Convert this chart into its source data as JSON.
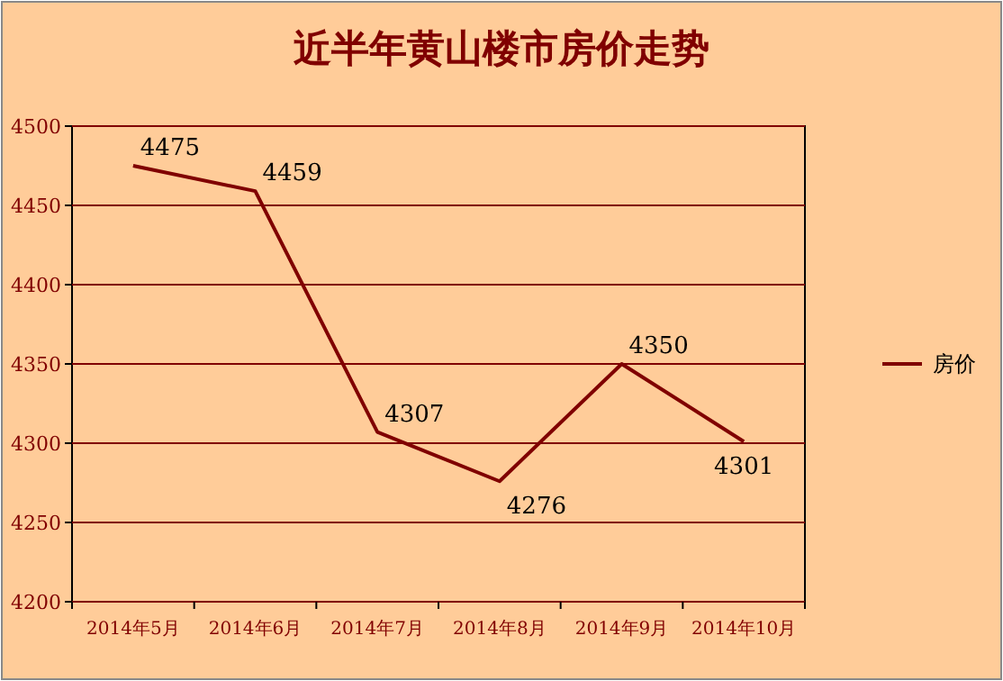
{
  "chart_data": {
    "type": "line",
    "title": "近半年黄山楼市房价走势",
    "categories": [
      "2014年5月",
      "2014年6月",
      "2014年7月",
      "2014年8月",
      "2014年9月",
      "2014年10月"
    ],
    "series": [
      {
        "name": "房价",
        "color": "#800000",
        "values": [
          4475,
          4459,
          4307,
          4276,
          4350,
          4301
        ]
      }
    ],
    "ylim": [
      4200,
      4500
    ],
    "yticks": [
      4200,
      4250,
      4300,
      4350,
      4400,
      4450,
      4500
    ],
    "grid": "y",
    "legend": "right",
    "data_labels": true,
    "marker": "none",
    "line_style": "solid"
  }
}
